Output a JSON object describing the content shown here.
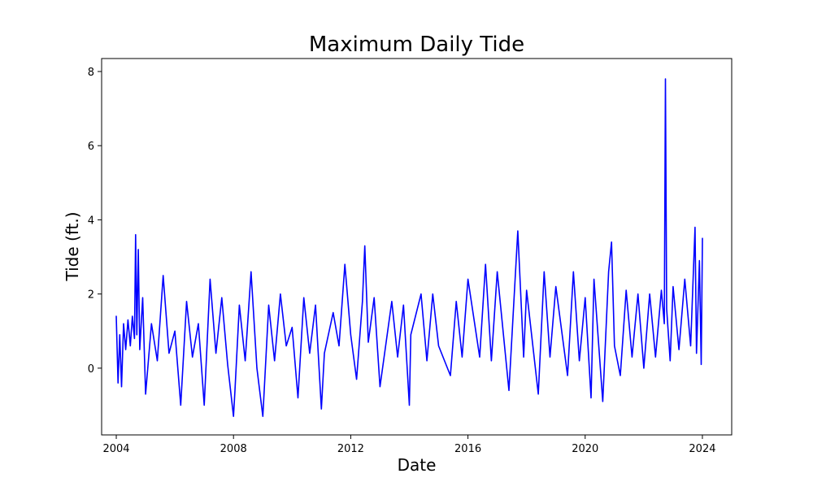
{
  "chart_data": {
    "type": "line",
    "title": "Maximum Daily Tide",
    "xlabel": "Date",
    "ylabel": "Tide (ft.)",
    "xlim": [
      2003.5,
      2025.0
    ],
    "ylim": [
      -1.8,
      8.35
    ],
    "x_ticks": [
      2004,
      2008,
      2012,
      2016,
      2020,
      2024
    ],
    "x_tick_labels": [
      "2004",
      "2008",
      "2012",
      "2016",
      "2020",
      "2024"
    ],
    "y_ticks": [
      0,
      2,
      4,
      6,
      8
    ],
    "y_tick_labels": [
      "0",
      "2",
      "4",
      "6",
      "8"
    ],
    "grid": false,
    "series": [
      {
        "name": "Maximum Daily Tide",
        "color": "#0000ff",
        "x": [
          2004.0,
          2004.06,
          2004.12,
          2004.18,
          2004.25,
          2004.32,
          2004.4,
          2004.48,
          2004.55,
          2004.62,
          2004.66,
          2004.7,
          2004.75,
          2004.8,
          2004.9,
          2005.0,
          2005.2,
          2005.4,
          2005.6,
          2005.8,
          2006.0,
          2006.2,
          2006.4,
          2006.6,
          2006.8,
          2007.0,
          2007.2,
          2007.4,
          2007.6,
          2007.8,
          2008.0,
          2008.05,
          2008.2,
          2008.4,
          2008.6,
          2008.8,
          2009.0,
          2009.2,
          2009.4,
          2009.6,
          2009.8,
          2010.0,
          2010.2,
          2010.4,
          2010.6,
          2010.8,
          2011.0,
          2011.1,
          2011.4,
          2011.6,
          2011.8,
          2012.0,
          2012.2,
          2012.4,
          2012.48,
          2012.6,
          2012.8,
          2013.0,
          2013.4,
          2013.6,
          2013.8,
          2014.0,
          2014.05,
          2014.4,
          2014.6,
          2014.8,
          2015.0,
          2015.4,
          2015.6,
          2015.8,
          2016.0,
          2016.4,
          2016.6,
          2016.8,
          2017.0,
          2017.4,
          2017.7,
          2017.9,
          2018.0,
          2018.4,
          2018.6,
          2018.8,
          2019.0,
          2019.4,
          2019.6,
          2019.8,
          2020.0,
          2020.2,
          2020.3,
          2020.6,
          2020.8,
          2020.9,
          2021.0,
          2021.2,
          2021.4,
          2021.6,
          2021.8,
          2022.0,
          2022.2,
          2022.4,
          2022.6,
          2022.7,
          2022.74,
          2022.78,
          2022.9,
          2023.0,
          2023.2,
          2023.4,
          2023.6,
          2023.75,
          2023.8,
          2023.9,
          2023.96,
          2024.0
        ],
        "y": [
          1.4,
          -0.4,
          0.9,
          -0.5,
          1.2,
          0.5,
          1.3,
          0.6,
          1.4,
          0.8,
          3.6,
          0.9,
          3.2,
          0.5,
          1.9,
          -0.7,
          1.2,
          0.2,
          2.5,
          0.4,
          1.0,
          -1.0,
          1.8,
          0.3,
          1.2,
          -1.0,
          2.4,
          0.4,
          1.9,
          0.1,
          -1.3,
          -0.6,
          1.7,
          0.2,
          2.6,
          0.0,
          -1.3,
          1.7,
          0.2,
          2.0,
          0.6,
          1.1,
          -0.8,
          1.9,
          0.4,
          1.7,
          -1.1,
          0.4,
          1.5,
          0.6,
          2.8,
          0.9,
          -0.3,
          1.8,
          3.3,
          0.7,
          1.9,
          -0.5,
          1.8,
          0.3,
          1.7,
          -1.0,
          0.9,
          2.0,
          0.2,
          2.0,
          0.6,
          -0.2,
          1.8,
          0.3,
          2.4,
          0.3,
          2.8,
          0.2,
          2.6,
          -0.6,
          3.7,
          0.3,
          2.1,
          -0.7,
          2.6,
          0.3,
          2.2,
          -0.2,
          2.6,
          0.2,
          1.9,
          -0.8,
          2.4,
          -0.9,
          2.6,
          3.4,
          0.6,
          -0.2,
          2.1,
          0.3,
          2.0,
          0.0,
          2.0,
          0.3,
          2.1,
          1.2,
          7.8,
          1.6,
          0.2,
          2.2,
          0.5,
          2.4,
          0.6,
          3.8,
          0.4,
          2.9,
          0.1,
          3.5
        ]
      }
    ]
  }
}
